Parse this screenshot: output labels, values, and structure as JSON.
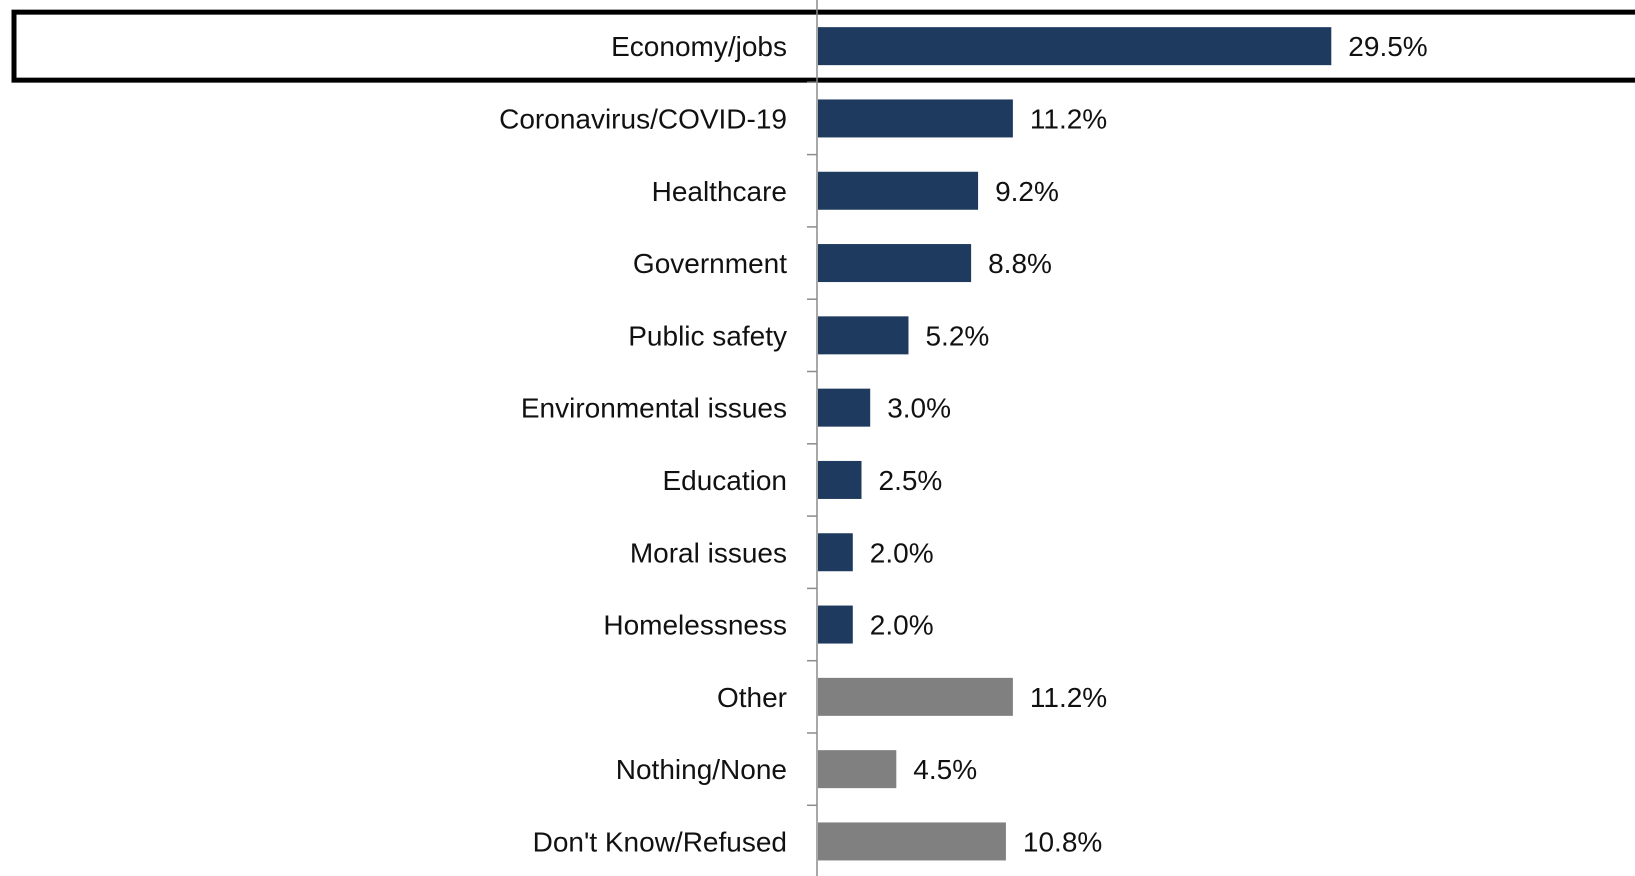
{
  "chart_data": {
    "type": "bar",
    "orientation": "horizontal",
    "categories": [
      "Economy/jobs",
      "Coronavirus/COVID-19",
      "Healthcare",
      "Government",
      "Public safety",
      "Environmental issues",
      "Education",
      "Moral issues",
      "Homelessness",
      "Other",
      "Nothing/None",
      "Don't Know/Refused"
    ],
    "values": [
      29.5,
      11.2,
      9.2,
      8.8,
      5.2,
      3.0,
      2.5,
      2.0,
      2.0,
      11.2,
      4.5,
      10.8
    ],
    "value_labels": [
      "29.5%",
      "11.2%",
      "9.2%",
      "8.8%",
      "5.2%",
      "3.0%",
      "2.5%",
      "2.0%",
      "2.0%",
      "11.2%",
      "4.5%",
      "10.8%"
    ],
    "bar_colors": [
      "#1f3a5f",
      "#1f3a5f",
      "#1f3a5f",
      "#1f3a5f",
      "#1f3a5f",
      "#1f3a5f",
      "#1f3a5f",
      "#1f3a5f",
      "#1f3a5f",
      "#808080",
      "#808080",
      "#808080"
    ],
    "highlighted_category": "Economy/jobs",
    "xlim": [
      0,
      45
    ],
    "grid": false,
    "legend": "none"
  }
}
